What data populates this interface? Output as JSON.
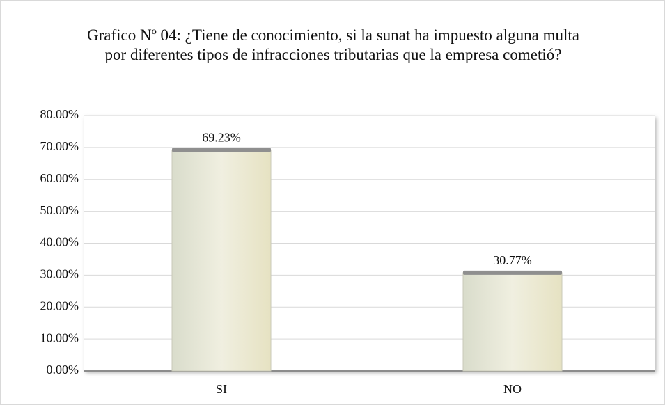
{
  "chart_data": {
    "type": "bar",
    "title": "Grafico Nº 04: ¿Tiene de conocimiento, si la sunat ha impuesto alguna multa por diferentes tipos de infracciones tributarias que la empresa cometió?",
    "categories": [
      "SI",
      "NO"
    ],
    "values": [
      69.23,
      30.77
    ],
    "value_labels": [
      "69.23%",
      "30.77%"
    ],
    "color": "#ecead6",
    "ylim": [
      0,
      80
    ],
    "yticks": [
      {
        "value": 0,
        "label": "0.00%"
      },
      {
        "value": 10,
        "label": "10.00%"
      },
      {
        "value": 20,
        "label": "20.00%"
      },
      {
        "value": 30,
        "label": "30.00%"
      },
      {
        "value": 40,
        "label": "40.00%"
      },
      {
        "value": 50,
        "label": "50.00%"
      },
      {
        "value": 60,
        "label": "60.00%"
      },
      {
        "value": 70,
        "label": "70.00%"
      },
      {
        "value": 80,
        "label": "80.00%"
      }
    ],
    "grid": true
  }
}
